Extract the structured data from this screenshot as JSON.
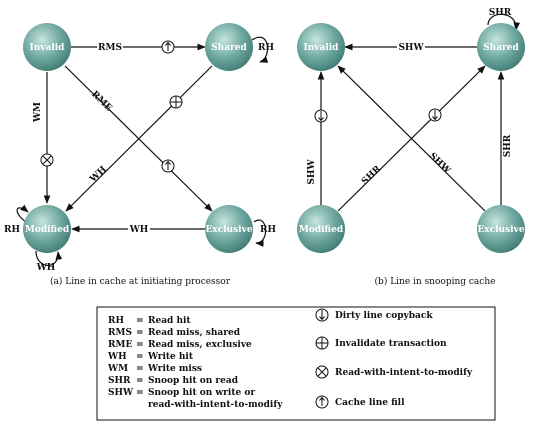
{
  "states": {
    "invalid": "Invalid",
    "shared": "Shared",
    "modified": "Modified",
    "exclusive": "Exclusive"
  },
  "panel_a": {
    "edges": {
      "rms": "RMS",
      "rh_shared": "RH",
      "wm": "WM",
      "rme": "RME",
      "wh_diag": "WH",
      "rh_modified": "RH",
      "wh_bottom": "WH",
      "rh_exclusive": "RH",
      "wh_loop": "WH"
    },
    "caption": "(a) Line in cache at initiating processor"
  },
  "panel_b": {
    "edges": {
      "shr_loop": "SHR",
      "shw_top": "SHW",
      "shw_left": "SHW",
      "shr_diag": "SHR",
      "shw_diag": "SHW",
      "shr_right": "SHR"
    },
    "caption": "(b) Line in snooping cache"
  },
  "legend": {
    "abbreviations": [
      {
        "abbr": "RH",
        "meaning": "Read hit"
      },
      {
        "abbr": "RMS",
        "meaning": "Read miss, shared"
      },
      {
        "abbr": "RME",
        "meaning": "Read miss, exclusive"
      },
      {
        "abbr": "WH",
        "meaning": "Write hit"
      },
      {
        "abbr": "WM",
        "meaning": "Write miss"
      },
      {
        "abbr": "SHR",
        "meaning": "Snoop hit on read"
      },
      {
        "abbr": "SHW",
        "meaning": "Snoop hit on write or"
      }
    ],
    "shw_continuation": "read-with-intent-to-modify",
    "symbols": [
      {
        "icon": "dirty-line-copyback-icon",
        "label": "Dirty line copyback"
      },
      {
        "icon": "invalidate-transaction-icon",
        "label": "Invalidate transaction"
      },
      {
        "icon": "read-with-intent-to-modify-icon",
        "label": "Read-with-intent-to-modify"
      },
      {
        "icon": "cache-line-fill-icon",
        "label": "Cache line fill"
      }
    ]
  },
  "colors": {
    "node_fill": "#5f9f96",
    "node_highlight": "#bfe3dc",
    "line": "#111111"
  }
}
